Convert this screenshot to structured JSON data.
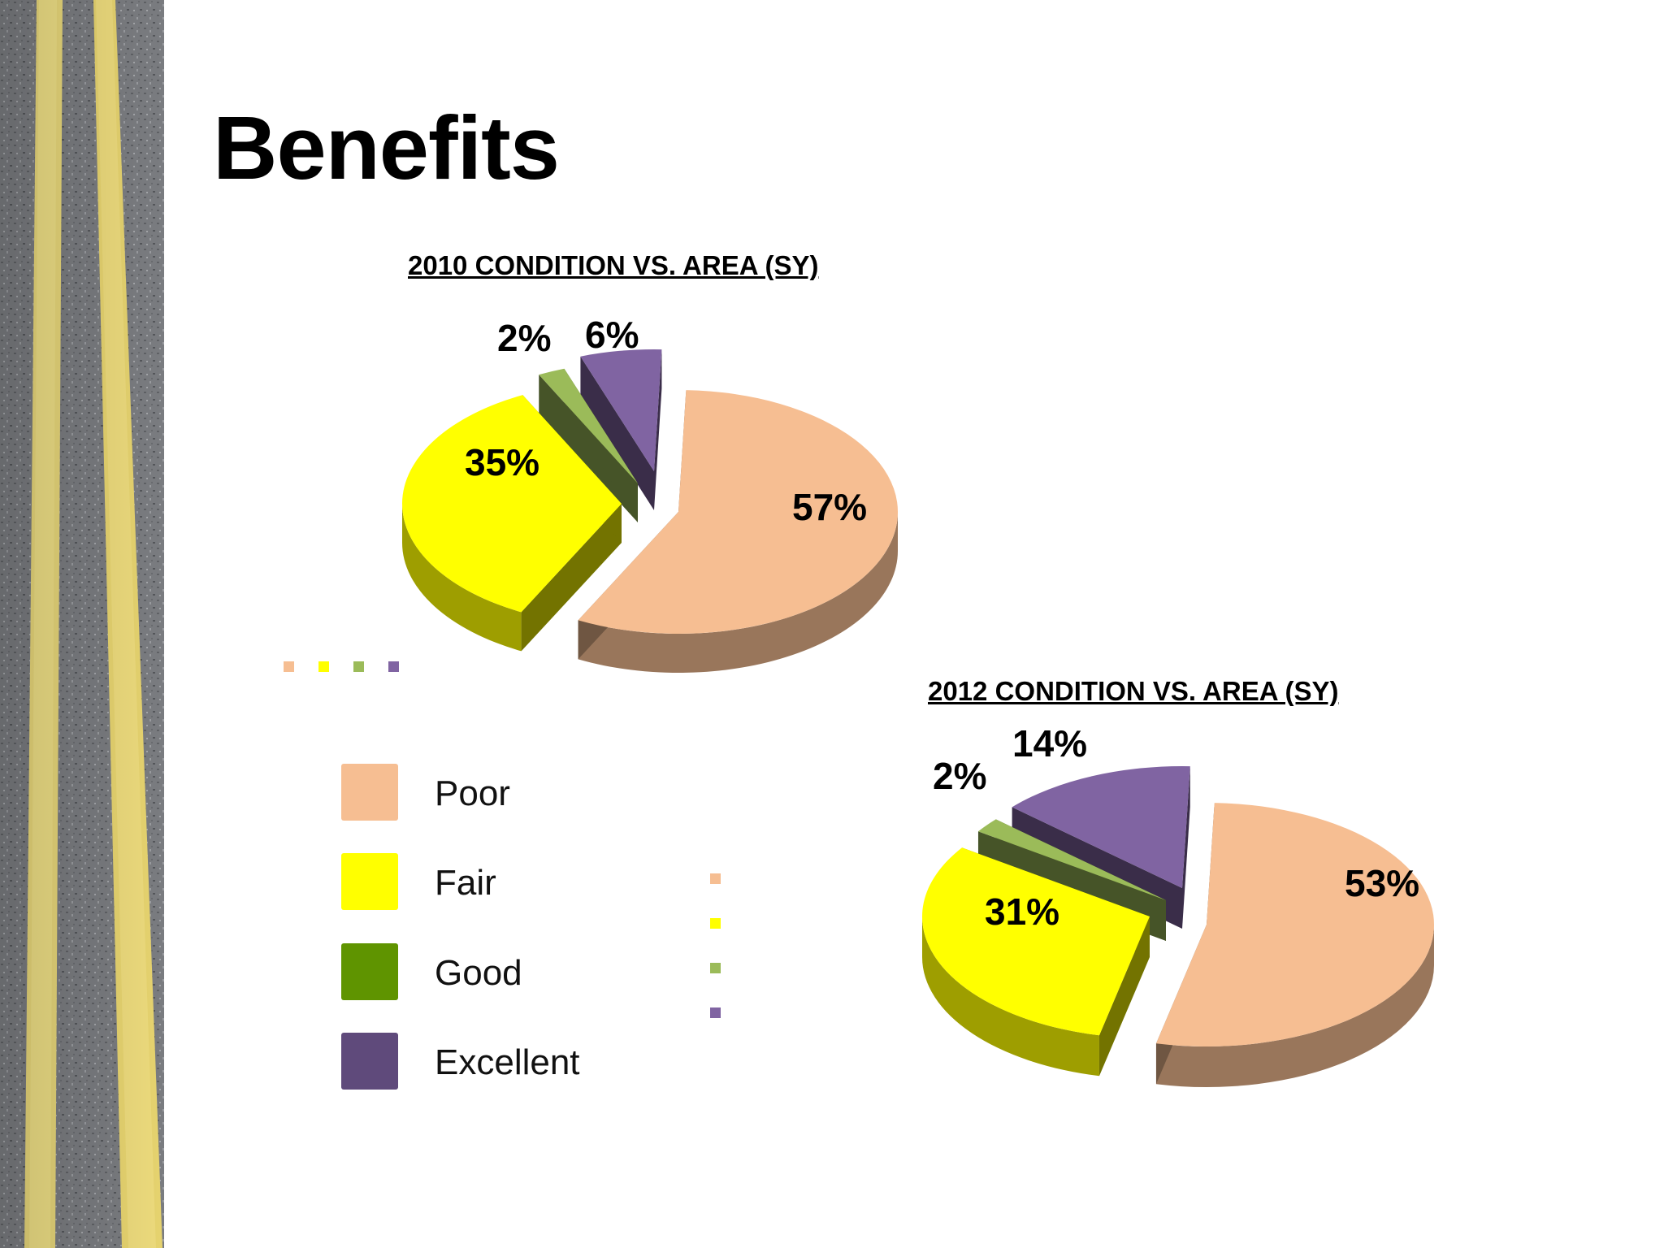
{
  "slide": {
    "title": "Benefits"
  },
  "colors": {
    "poor": "#F6BE92",
    "fair": "#FFFF00",
    "good": "#9BBB59",
    "excellent": "#8064A2",
    "legend_good": "#5F9400",
    "legend_excellent": "#5F4A7B"
  },
  "legend": {
    "items": [
      {
        "label": "Poor",
        "color": "#F6BE92"
      },
      {
        "label": "Fair",
        "color": "#FFFF00"
      },
      {
        "label": "Good",
        "color": "#5F9400"
      },
      {
        "label": "Excellent",
        "color": "#5F4A7B"
      }
    ]
  },
  "chart_data": [
    {
      "type": "pie",
      "title": "2010 CONDITION VS. AREA (SY)",
      "categories": [
        "Poor",
        "Fair",
        "Good",
        "Excellent"
      ],
      "values": [
        57,
        35,
        2,
        6
      ],
      "labels": [
        "57%",
        "35%",
        "2%",
        "6%"
      ],
      "exploded": true,
      "three_d": true
    },
    {
      "type": "pie",
      "title": "2012 CONDITION VS. AREA (SY)",
      "categories": [
        "Poor",
        "Fair",
        "Good",
        "Excellent"
      ],
      "values": [
        53,
        31,
        2,
        14
      ],
      "labels": [
        "53%",
        "31%",
        "2%",
        "14%"
      ],
      "exploded": true,
      "three_d": true
    }
  ]
}
